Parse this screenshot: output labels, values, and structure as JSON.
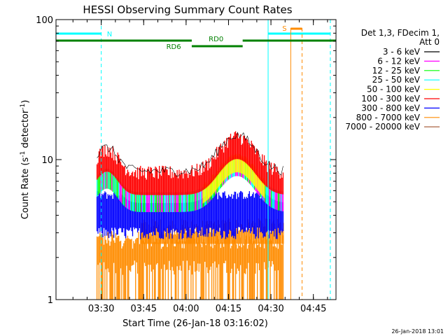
{
  "chart_data": {
    "type": "line",
    "title": "HESSI Observing Summary Count Rates",
    "xlabel": "Start Time (26-Jan-18 03:16:02)",
    "ylabel": "Count Rate (s",
    "ylabel_sup1": "-1",
    "ylabel_mid": " detector",
    "ylabel_sup2": "-1",
    "ylabel_end": ")",
    "yscale": "log",
    "ylim": [
      1,
      100
    ],
    "xlim_minutes": [
      -2,
      97
    ],
    "x_ticks": [
      {
        "label": "03:30",
        "min": 14
      },
      {
        "label": "03:45",
        "min": 29
      },
      {
        "label": "04:00",
        "min": 44
      },
      {
        "label": "04:15",
        "min": 59
      },
      {
        "label": "04:30",
        "min": 74
      },
      {
        "label": "04:45",
        "min": 89
      }
    ],
    "y_ticks": [
      {
        "label": "1",
        "v": 1
      },
      {
        "label": "10",
        "v": 10
      },
      {
        "label": "100",
        "v": 100
      }
    ],
    "legend_header": [
      "Det 1,3, FDecim 1,",
      "Att 0"
    ],
    "series": [
      {
        "name": "3 - 6 keV",
        "color": "#000000"
      },
      {
        "name": "6 - 12 keV",
        "color": "#ff00ff"
      },
      {
        "name": "12 - 25 keV",
        "color": "#00ff00"
      },
      {
        "name": "25 - 50 keV",
        "color": "#00ffff"
      },
      {
        "name": "50 - 100 keV",
        "color": "#ffff00"
      },
      {
        "name": "100 - 300 keV",
        "color": "#ff0000"
      },
      {
        "name": "300 - 800 keV",
        "color": "#0000ff"
      },
      {
        "name": "800 - 7000 keV",
        "color": "#ff8c00"
      },
      {
        "name": "7000 - 20000 keV",
        "color": "#a0522d"
      }
    ],
    "flag_labels": {
      "night": "N",
      "saa": "S",
      "rd0": "RD0",
      "rd6": "RD6"
    },
    "flag_colors": {
      "night": "#00ffff",
      "saa": "#ff8c00",
      "rd": "#008000"
    },
    "data_start_min": 12.5,
    "data_end_min": 78.5,
    "night_lines_min": [
      -2,
      14,
      73,
      95
    ],
    "saa_lines_min": [
      81,
      85
    ]
  },
  "footer_date": "26-Jan-2018 13:01"
}
